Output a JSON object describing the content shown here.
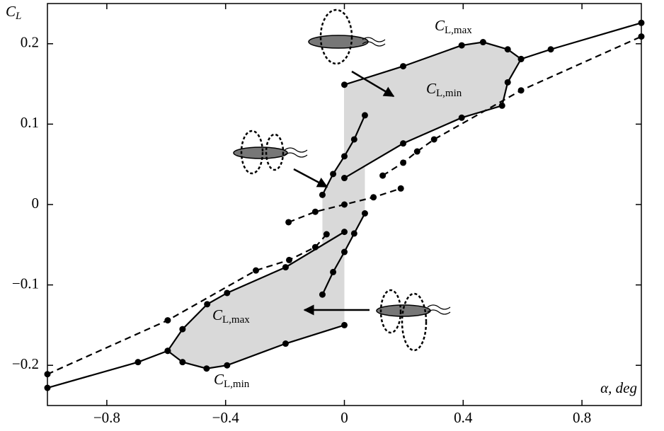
{
  "chart_data": {
    "type": "line",
    "x_label": "α, deg",
    "y_label": {
      "base": "C",
      "sub": "L"
    },
    "annotations": [
      {
        "base": "C",
        "sub": "L,max"
      },
      {
        "base": "C",
        "sub": "L,min"
      },
      {
        "base": "C",
        "sub": "L,max"
      },
      {
        "base": "C",
        "sub": "L,min"
      }
    ],
    "xlim": [
      -1,
      1
    ],
    "ylim": [
      -0.25,
      0.25
    ],
    "xticks": [
      {
        "value": -0.8,
        "label": "−0.8"
      },
      {
        "value": -0.4,
        "label": "−0.4"
      },
      0,
      0.4,
      0.8
    ],
    "yticks": [
      {
        "value": -0.2,
        "label": "−0.2"
      },
      {
        "value": -0.1,
        "label": "−0.1"
      },
      0,
      0.1,
      0.2
    ],
    "series": [
      {
        "style": "solid",
        "color": "#000000",
        "x": [
          0,
          0.198,
          0.395,
          0.467,
          0.55,
          0.595,
          0.695,
          1.0
        ],
        "values": [
          0.149,
          0.172,
          0.198,
          0.202,
          0.193,
          0.181,
          0.193,
          0.226
        ]
      },
      {
        "style": "solid",
        "color": "#000000",
        "x": [
          0,
          0.198,
          0.395,
          0.531,
          0.55,
          0.595
        ],
        "values": [
          0.033,
          0.076,
          0.108,
          0.123,
          0.152,
          0.181
        ]
      },
      {
        "style": "solid",
        "color": "#000000",
        "x": [
          -0.074,
          -0.038,
          0,
          0.033,
          0.069
        ],
        "values": [
          0.012,
          0.038,
          0.06,
          0.081,
          0.111
        ]
      },
      {
        "style": "solid",
        "color": "#000000",
        "x": [
          -0.074,
          -0.038,
          0,
          0.033,
          0.069
        ],
        "values": [
          -0.112,
          -0.084,
          -0.059,
          -0.036,
          -0.011
        ]
      },
      {
        "style": "solid",
        "color": "#000000",
        "x": [
          0,
          -0.198,
          -0.395,
          -0.464,
          -0.545,
          -0.595,
          -0.695,
          -1.0
        ],
        "values": [
          -0.15,
          -0.173,
          -0.2,
          -0.204,
          -0.196,
          -0.182,
          -0.196,
          -0.228
        ]
      },
      {
        "style": "solid",
        "color": "#000000",
        "x": [
          0,
          -0.198,
          -0.395,
          -0.462,
          -0.545,
          -0.595
        ],
        "values": [
          -0.034,
          -0.078,
          -0.11,
          -0.124,
          -0.155,
          -0.182
        ]
      },
      {
        "style": "dashed",
        "color": "#000000",
        "x": [
          0.129,
          0.198,
          0.245,
          0.302,
          0.595,
          1.0
        ],
        "values": [
          0.036,
          0.052,
          0.066,
          0.081,
          0.142,
          0.209
        ]
      },
      {
        "style": "dashed",
        "color": "#000000",
        "x": [
          -0.188,
          -0.098,
          0,
          0.098,
          0.19
        ],
        "values": [
          -0.022,
          -0.009,
          0,
          0.009,
          0.02
        ]
      },
      {
        "style": "dashed",
        "color": "#000000",
        "x": [
          -0.06,
          -0.098,
          -0.186,
          -0.298,
          -0.595,
          -1.0
        ],
        "values": [
          -0.037,
          -0.053,
          -0.069,
          -0.082,
          -0.144,
          -0.211
        ]
      }
    ],
    "shade_color": "#d9d9d9"
  }
}
